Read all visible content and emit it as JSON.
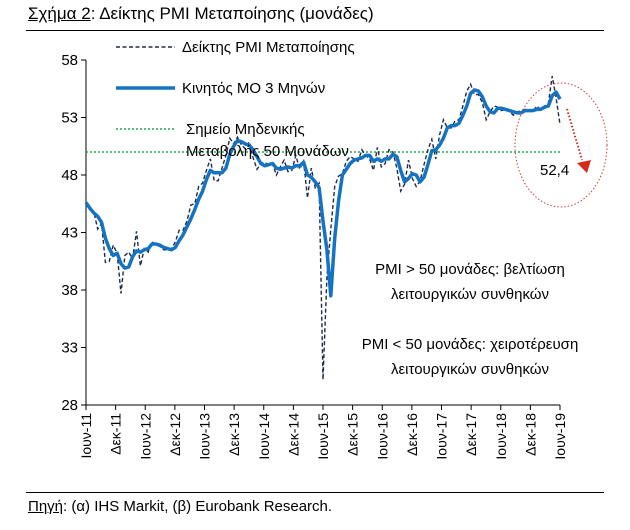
{
  "figure_title": {
    "label": "Σχήμα 2",
    "text": ": Δείκτης PMI Μεταποίησης (μονάδες)"
  },
  "source": {
    "label": "Πηγή",
    "text": ": (α) IHS Markit, (β) Eurobank Research."
  },
  "chart_data": {
    "type": "line",
    "title": "Δείκτης PMI Μεταποίησης (μονάδες)",
    "xlabel": "",
    "ylabel": "",
    "ylim": [
      28,
      58
    ],
    "yticks": [
      28,
      33,
      38,
      43,
      48,
      53,
      58
    ],
    "xticks": [
      "Ιουν-11",
      "Δεκ-11",
      "Ιουν-12",
      "Δεκ-12",
      "Ιουν-13",
      "Δεκ-13",
      "Ιουν-14",
      "Δεκ-14",
      "Ιουν-15",
      "Δεκ-15",
      "Ιουν-16",
      "Δεκ-16",
      "Ιουν-17",
      "Δεκ-17",
      "Ιουν-18",
      "Δεκ-18",
      "Ιουν-19"
    ],
    "x_start": "2011-06",
    "x_end": "2019-06",
    "grid": false,
    "legend_position": "top-left",
    "legend": [
      {
        "name": "Δείκτης PMI Μεταποίησης",
        "style": "dashed"
      },
      {
        "name": "Κινητός ΜΟ 3 Μηνών",
        "style": "solid-thick"
      },
      {
        "name_lines": [
          "Σημείο Μηδενικής",
          "Μεταβολής 50 Μονάδων"
        ],
        "style": "dotted"
      }
    ],
    "series": [
      {
        "name": "Δείκτης PMI Μεταποίησης",
        "color": "#1f2a4a",
        "values": [
          45.4,
          45.2,
          44.8,
          43.3,
          43.8,
          40.4,
          40.5,
          41.9,
          41.2,
          37.7,
          41.0,
          41.3,
          40.7,
          43.1,
          40.1,
          41.6,
          41.3,
          42.2,
          41.9,
          41.8,
          41.5,
          41.5,
          41.6,
          42.2,
          43.2,
          43.2,
          44.0,
          45.4,
          45.5,
          47.0,
          47.3,
          48.4,
          49.4,
          47.5,
          47.5,
          48.6,
          49.7,
          51.2,
          50.7,
          51.3,
          50.6,
          50.3,
          50.9,
          49.5,
          48.5,
          49.0,
          49.1,
          48.9,
          49.0,
          48.0,
          48.7,
          49.3,
          48.3,
          48.4,
          49.7,
          48.5,
          49.2,
          46.0,
          48.6,
          46.9,
          47.3,
          30.2,
          39.1,
          43.3,
          47.0,
          47.9,
          48.1,
          49.2,
          49.6,
          49.4,
          49.2,
          50.2,
          49.7,
          49.4,
          48.4,
          50.4,
          48.7,
          49.0,
          50.2,
          50.0,
          48.6,
          46.6,
          47.2,
          49.3,
          47.7,
          47.0,
          47.5,
          48.9,
          50.2,
          51.1,
          49.4,
          51.5,
          52.8,
          52.1,
          52.1,
          52.7,
          52.8,
          54.0,
          55.3,
          55.9,
          55.0,
          55.0,
          54.3,
          52.8,
          53.5,
          54.0,
          53.9,
          53.6,
          53.7,
          53.5,
          53.2,
          53.5,
          53.6,
          53.7,
          53.6,
          53.5,
          54.0,
          53.7,
          54.0,
          54.2,
          56.6,
          54.7,
          52.4
        ],
        "last_label": "52,4"
      },
      {
        "name": "Κινητός ΜΟ 3 Μηνών",
        "color": "#1473c2",
        "values": [
          45.6,
          45.1,
          44.7,
          44.4,
          43.9,
          42.5,
          41.6,
          41.0,
          41.2,
          40.3,
          39.9,
          40.0,
          40.9,
          41.4,
          41.3,
          41.5,
          41.6,
          42.0,
          42.0,
          41.9,
          41.7,
          41.6,
          41.5,
          41.7,
          42.3,
          42.8,
          43.5,
          44.2,
          45.0,
          45.9,
          46.6,
          47.6,
          48.4,
          48.2,
          48.2,
          48.2,
          48.6,
          49.8,
          50.5,
          51.0,
          50.9,
          50.7,
          50.6,
          50.2,
          49.6,
          49.0,
          48.8,
          48.9,
          49.0,
          48.6,
          48.5,
          48.6,
          48.7,
          48.6,
          48.8,
          48.8,
          49.1,
          48.0,
          47.8,
          47.4,
          46.9,
          44.0,
          41.5,
          37.5,
          42.5,
          45.7,
          48.0,
          48.5,
          49.0,
          49.3,
          49.4,
          49.5,
          49.7,
          49.7,
          49.2,
          49.4,
          49.2,
          49.4,
          49.4,
          49.8,
          49.6,
          48.4,
          47.4,
          47.7,
          48.1,
          48.0,
          47.4,
          47.8,
          48.9,
          50.1,
          50.2,
          50.6,
          51.2,
          52.1,
          52.3,
          52.3,
          52.5,
          53.2,
          54.0,
          55.1,
          55.4,
          55.3,
          54.8,
          54.0,
          53.5,
          53.4,
          53.8,
          53.8,
          53.7,
          53.6,
          53.5,
          53.4,
          53.4,
          53.6,
          53.6,
          53.6,
          53.7,
          53.7,
          53.9,
          54.0,
          54.9,
          55.2,
          54.6
        ],
        "last_label": ""
      }
    ],
    "reference_line": {
      "y": 50,
      "color": "#22a84b",
      "style": "dotted"
    },
    "annotations": [
      {
        "id": "above",
        "text_lines": [
          "PMI > 50 μονάδες: βελτίωση",
          "λειτουργικών συνθηκών"
        ]
      },
      {
        "id": "below",
        "text_lines": [
          "PMI < 50 μονάδες: χειροτέρευση",
          "λειτουργικών συνθηκών"
        ]
      }
    ],
    "highlight": {
      "shape": "dotted-ellipse",
      "color": "#d93a3a",
      "arrow": "down-right",
      "arrow_color": "#d42a1e"
    }
  }
}
